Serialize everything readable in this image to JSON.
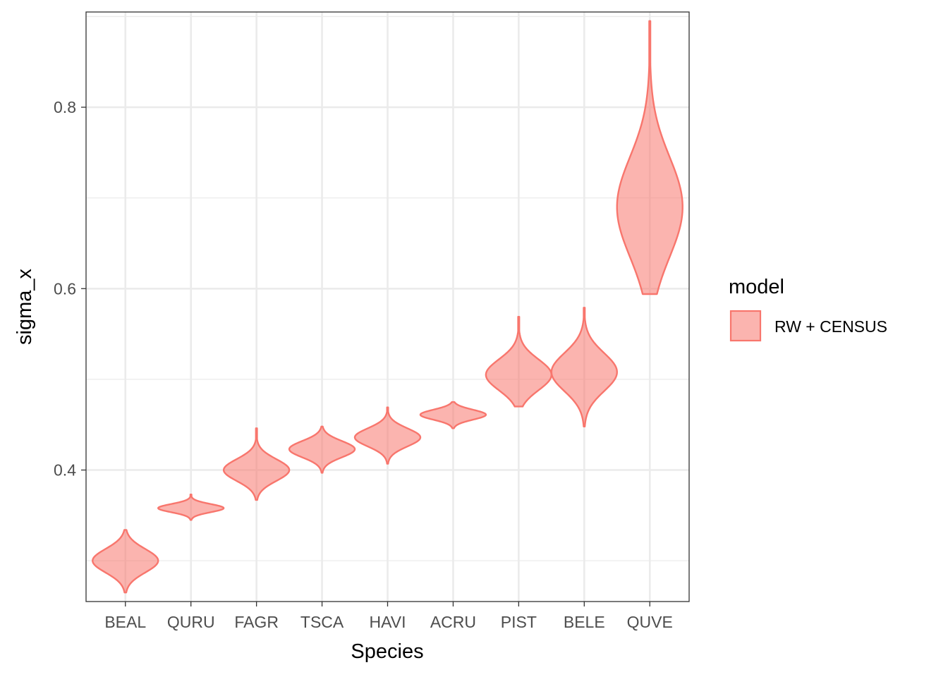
{
  "chart_data": {
    "type": "violin",
    "xlabel": "Species",
    "ylabel": "sigma_x",
    "ylim": [
      0.255,
      0.905
    ],
    "y_ticks": [
      0.4,
      0.6,
      0.8
    ],
    "y_tick_labels": [
      "0.4",
      "0.6",
      "0.8"
    ],
    "grid": true,
    "legend": {
      "title": "model",
      "position": "right",
      "entries": [
        {
          "label": "RW + CENSUS",
          "color": "#F8766D"
        }
      ]
    },
    "categories": [
      "BEAL",
      "QURU",
      "FAGR",
      "TSCA",
      "HAVI",
      "ACRU",
      "PIST",
      "BELE",
      "QUVE"
    ],
    "series": [
      {
        "label": "RW + CENSUS",
        "color": "#F8766D",
        "fill_alpha": 0.55,
        "distributions": [
          {
            "category": "BEAL",
            "min": 0.265,
            "max": 0.334,
            "median": 0.3,
            "spread": 0.013
          },
          {
            "category": "QURU",
            "min": 0.345,
            "max": 0.373,
            "median": 0.358,
            "spread": 0.0045
          },
          {
            "category": "FAGR",
            "min": 0.367,
            "max": 0.446,
            "median": 0.4,
            "spread": 0.012
          },
          {
            "category": "TSCA",
            "min": 0.397,
            "max": 0.448,
            "median": 0.423,
            "spread": 0.009
          },
          {
            "category": "HAVI",
            "min": 0.407,
            "max": 0.469,
            "median": 0.436,
            "spread": 0.01
          },
          {
            "category": "ACRU",
            "min": 0.446,
            "max": 0.475,
            "median": 0.461,
            "spread": 0.0055
          },
          {
            "category": "PIST",
            "min": 0.47,
            "max": 0.569,
            "median": 0.505,
            "spread": 0.017
          },
          {
            "category": "BELE",
            "min": 0.448,
            "max": 0.579,
            "median": 0.508,
            "spread": 0.021
          },
          {
            "category": "QUVE",
            "min": 0.594,
            "max": 0.895,
            "median": 0.69,
            "spread": 0.055
          }
        ]
      }
    ]
  }
}
